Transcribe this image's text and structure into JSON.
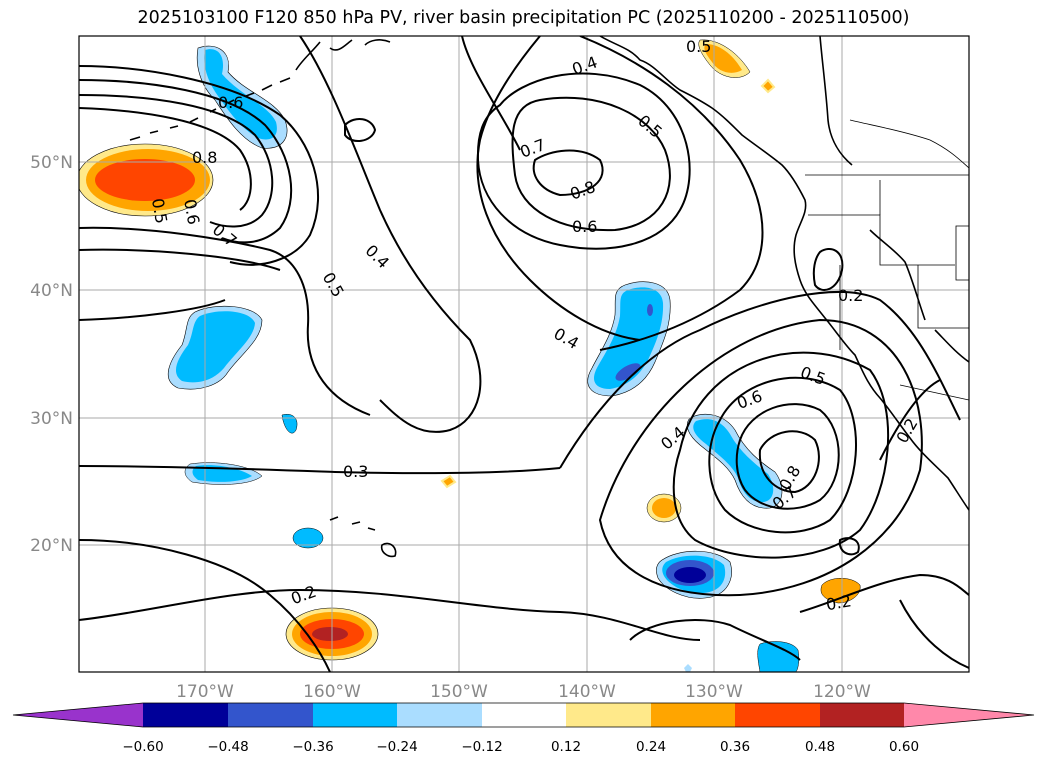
{
  "title": "2025103100 F120 850 hPa PV, river basin precipitation PC (2025110200 - 2025110500)",
  "map": {
    "lon_labels": [
      "170°W",
      "160°W",
      "150°W",
      "140°W",
      "130°W",
      "120°W"
    ],
    "lat_labels": [
      "50°N",
      "40°N",
      "30°N",
      "20°N"
    ],
    "grid": true,
    "contour_color": "#000000",
    "contour_labels": [
      "0.6",
      "0.8",
      "0.5",
      "0.6",
      "0.7",
      "0.4",
      "0.5",
      "0.7",
      "0.8",
      "0.6",
      "0.4",
      "0.5",
      "0.4",
      "0.5",
      "0.3",
      "0.2",
      "0.4",
      "0.6",
      "0.5",
      "0.8",
      "0.7",
      "0.2",
      "0.2",
      "0.2"
    ]
  },
  "colorbar": {
    "ticks": [
      "−0.60",
      "−0.48",
      "−0.36",
      "−0.24",
      "−0.12",
      "0.12",
      "0.24",
      "0.36",
      "0.48",
      "0.60"
    ],
    "colors": {
      "under": "#9933cc",
      "c1": "#000099",
      "c2": "#3355cc",
      "c3": "#00bbff",
      "c4": "#aaddff",
      "c5": "#ffffff",
      "c6": "#ffe98a",
      "c7": "#ffa500",
      "c8": "#ff4500",
      "c9": "#b22222",
      "over": "#ff88aa"
    }
  }
}
